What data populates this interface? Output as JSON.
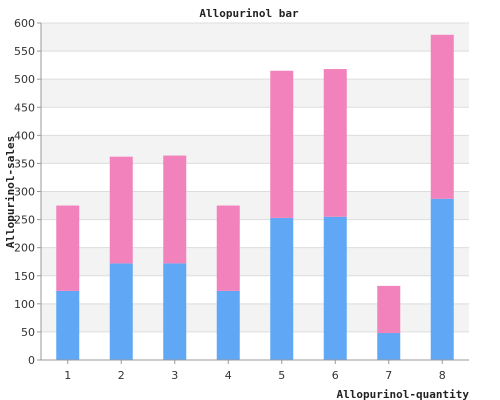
{
  "chart_data": {
    "type": "bar",
    "stacked": true,
    "title": "Allopurinol bar",
    "xlabel": "Allopurinol-quantity",
    "ylabel": "Allopurinol-sales",
    "categories": [
      "1",
      "2",
      "3",
      "4",
      "5",
      "6",
      "7",
      "8"
    ],
    "series": [
      {
        "values": [
          123,
          172,
          172,
          123,
          253,
          255,
          48,
          287
        ],
        "color": "#60a8f5"
      },
      {
        "values": [
          152,
          190,
          192,
          152,
          262,
          263,
          84,
          292
        ],
        "color": "#f282bb"
      }
    ],
    "ylim": [
      0,
      600
    ],
    "yticks": [
      0,
      50,
      100,
      150,
      200,
      250,
      300,
      350,
      400,
      450,
      500,
      550,
      600
    ],
    "grid": true,
    "band_colors": [
      "#ffffff",
      "#f3f3f3"
    ]
  }
}
